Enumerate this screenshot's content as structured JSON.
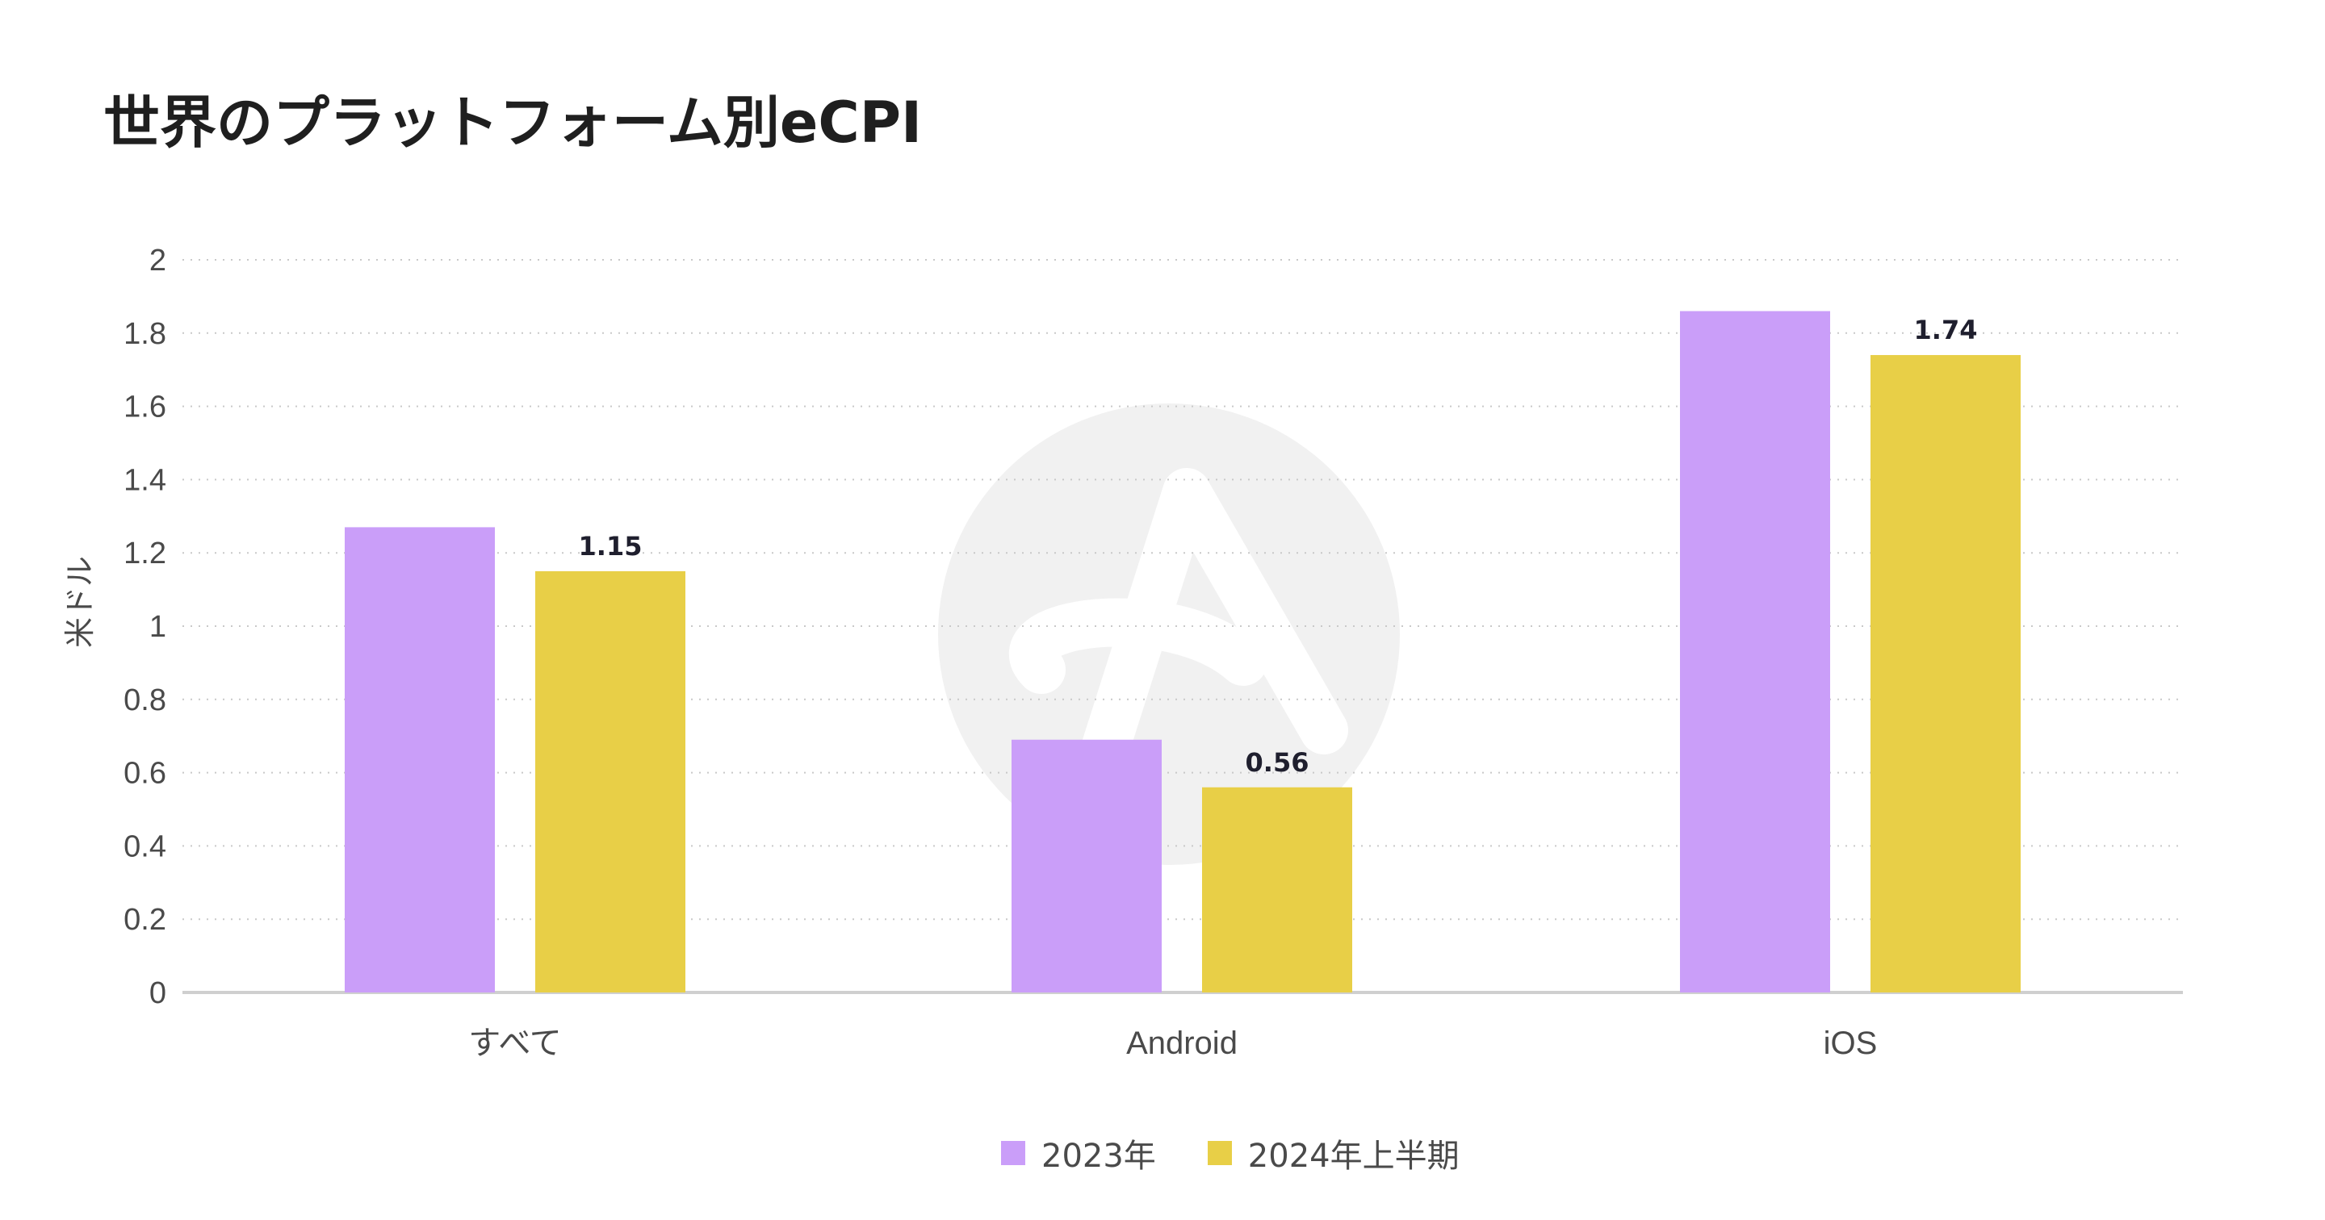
{
  "title": "世界のプラットフォーム別eCPI",
  "colors": {
    "series_2023": "#ca9ef9",
    "series_2024h1": "#e8cf47",
    "grid": "#c9c9c9",
    "axis": "#cfcfcf",
    "watermark": "#f1f1f1"
  },
  "chart_data": {
    "type": "bar",
    "title": "世界のプラットフォーム別eCPI",
    "xlabel": "",
    "ylabel": "米ドル",
    "ylim": [
      0,
      2
    ],
    "yticks": [
      "0",
      "0.2",
      "0.4",
      "0.6",
      "0.8",
      "1",
      "1.2",
      "1.4",
      "1.6",
      "1.8",
      "2"
    ],
    "yticks_values": [
      0,
      0.2,
      0.4,
      0.6,
      0.8,
      1,
      1.2,
      1.4,
      1.6,
      1.8,
      2
    ],
    "grid": true,
    "legend_position": "bottom-center",
    "categories": [
      "すべて",
      "Android",
      "iOS"
    ],
    "series": [
      {
        "name": "2023年",
        "values": [
          1.27,
          0.69,
          1.86
        ],
        "labels": [
          "",
          "",
          ""
        ]
      },
      {
        "name": "2024年上半期",
        "values": [
          1.15,
          0.56,
          1.74
        ],
        "labels": [
          "1.15",
          "0.56",
          "1.74"
        ]
      }
    ]
  }
}
